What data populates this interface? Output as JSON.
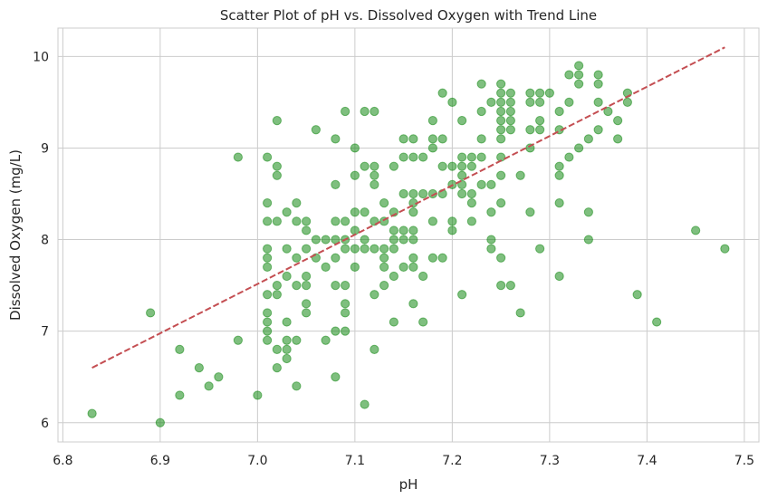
{
  "chart_data": {
    "type": "scatter",
    "title": "Scatter Plot of pH vs. Dissolved Oxygen with Trend Line",
    "xlabel": "pH",
    "ylabel": "Dissolved Oxygen (mg/L)",
    "xlim": [
      6.795,
      7.515
    ],
    "ylim": [
      5.79,
      10.31
    ],
    "xticks": [
      6.8,
      6.9,
      7.0,
      7.1,
      7.2,
      7.3,
      7.4,
      7.5
    ],
    "xtick_labels": [
      "6.8",
      "6.9",
      "7.0",
      "7.1",
      "7.2",
      "7.3",
      "7.4",
      "7.5"
    ],
    "yticks": [
      6,
      7,
      8,
      9,
      10
    ],
    "ytick_labels": [
      "6",
      "7",
      "8",
      "9",
      "10"
    ],
    "grid": true,
    "point_color": "#008000",
    "trend_color": "#c44e52",
    "trend_line": {
      "x": [
        6.83,
        7.48
      ],
      "y": [
        6.6,
        10.1
      ]
    },
    "points": [
      [
        6.83,
        6.1
      ],
      [
        6.89,
        7.2
      ],
      [
        6.9,
        6.0
      ],
      [
        6.92,
        6.8
      ],
      [
        6.92,
        6.3
      ],
      [
        6.94,
        6.6
      ],
      [
        6.95,
        6.4
      ],
      [
        6.96,
        6.5
      ],
      [
        6.98,
        8.9
      ],
      [
        6.98,
        6.9
      ],
      [
        7.0,
        6.3
      ],
      [
        7.01,
        8.9
      ],
      [
        7.01,
        8.4
      ],
      [
        7.01,
        8.2
      ],
      [
        7.01,
        7.9
      ],
      [
        7.01,
        7.8
      ],
      [
        7.01,
        7.7
      ],
      [
        7.01,
        7.4
      ],
      [
        7.01,
        7.2
      ],
      [
        7.01,
        7.1
      ],
      [
        7.01,
        7.0
      ],
      [
        7.01,
        6.9
      ],
      [
        7.02,
        9.3
      ],
      [
        7.02,
        8.8
      ],
      [
        7.02,
        8.7
      ],
      [
        7.02,
        8.2
      ],
      [
        7.02,
        7.5
      ],
      [
        7.02,
        7.4
      ],
      [
        7.02,
        6.8
      ],
      [
        7.02,
        6.6
      ],
      [
        7.03,
        8.3
      ],
      [
        7.03,
        7.9
      ],
      [
        7.03,
        7.6
      ],
      [
        7.03,
        7.1
      ],
      [
        7.03,
        6.9
      ],
      [
        7.03,
        6.8
      ],
      [
        7.03,
        6.7
      ],
      [
        7.04,
        8.4
      ],
      [
        7.04,
        8.2
      ],
      [
        7.04,
        7.8
      ],
      [
        7.04,
        7.5
      ],
      [
        7.04,
        6.9
      ],
      [
        7.04,
        6.4
      ],
      [
        7.05,
        8.2
      ],
      [
        7.05,
        8.1
      ],
      [
        7.05,
        7.9
      ],
      [
        7.05,
        7.6
      ],
      [
        7.05,
        7.5
      ],
      [
        7.05,
        7.3
      ],
      [
        7.05,
        7.2
      ],
      [
        7.06,
        9.2
      ],
      [
        7.06,
        8.0
      ],
      [
        7.06,
        7.8
      ],
      [
        7.07,
        8.0
      ],
      [
        7.07,
        7.7
      ],
      [
        7.07,
        6.9
      ],
      [
        7.08,
        9.1
      ],
      [
        7.08,
        8.6
      ],
      [
        7.08,
        8.2
      ],
      [
        7.08,
        8.0
      ],
      [
        7.08,
        7.8
      ],
      [
        7.08,
        7.5
      ],
      [
        7.08,
        7.0
      ],
      [
        7.08,
        6.5
      ],
      [
        7.09,
        9.4
      ],
      [
        7.09,
        8.2
      ],
      [
        7.09,
        8.0
      ],
      [
        7.09,
        7.9
      ],
      [
        7.09,
        7.5
      ],
      [
        7.09,
        7.3
      ],
      [
        7.09,
        7.2
      ],
      [
        7.09,
        7.0
      ],
      [
        7.1,
        9.0
      ],
      [
        7.1,
        8.7
      ],
      [
        7.1,
        8.3
      ],
      [
        7.1,
        8.1
      ],
      [
        7.1,
        7.9
      ],
      [
        7.1,
        7.7
      ],
      [
        7.11,
        9.4
      ],
      [
        7.11,
        8.8
      ],
      [
        7.11,
        8.3
      ],
      [
        7.11,
        8.0
      ],
      [
        7.11,
        7.9
      ],
      [
        7.11,
        6.2
      ],
      [
        7.12,
        9.4
      ],
      [
        7.12,
        8.8
      ],
      [
        7.12,
        8.7
      ],
      [
        7.12,
        8.6
      ],
      [
        7.12,
        8.2
      ],
      [
        7.12,
        7.9
      ],
      [
        7.12,
        7.4
      ],
      [
        7.12,
        6.8
      ],
      [
        7.13,
        8.4
      ],
      [
        7.13,
        8.2
      ],
      [
        7.13,
        7.9
      ],
      [
        7.13,
        7.8
      ],
      [
        7.13,
        7.7
      ],
      [
        7.13,
        7.5
      ],
      [
        7.14,
        8.8
      ],
      [
        7.14,
        8.3
      ],
      [
        7.14,
        8.1
      ],
      [
        7.14,
        8.0
      ],
      [
        7.14,
        7.9
      ],
      [
        7.14,
        7.6
      ],
      [
        7.14,
        7.1
      ],
      [
        7.15,
        9.1
      ],
      [
        7.15,
        8.9
      ],
      [
        7.15,
        8.5
      ],
      [
        7.15,
        8.1
      ],
      [
        7.15,
        8.0
      ],
      [
        7.15,
        7.7
      ],
      [
        7.16,
        9.1
      ],
      [
        7.16,
        8.9
      ],
      [
        7.16,
        8.5
      ],
      [
        7.16,
        8.4
      ],
      [
        7.16,
        8.3
      ],
      [
        7.16,
        8.1
      ],
      [
        7.16,
        8.0
      ],
      [
        7.16,
        7.8
      ],
      [
        7.16,
        7.7
      ],
      [
        7.16,
        7.3
      ],
      [
        7.17,
        8.9
      ],
      [
        7.17,
        8.5
      ],
      [
        7.17,
        7.6
      ],
      [
        7.17,
        7.1
      ],
      [
        7.18,
        9.3
      ],
      [
        7.18,
        9.1
      ],
      [
        7.18,
        9.0
      ],
      [
        7.18,
        8.5
      ],
      [
        7.18,
        8.2
      ],
      [
        7.18,
        7.8
      ],
      [
        7.19,
        9.6
      ],
      [
        7.19,
        9.1
      ],
      [
        7.19,
        8.8
      ],
      [
        7.19,
        8.5
      ],
      [
        7.19,
        7.8
      ],
      [
        7.2,
        9.5
      ],
      [
        7.2,
        8.8
      ],
      [
        7.2,
        8.6
      ],
      [
        7.2,
        8.2
      ],
      [
        7.2,
        8.1
      ],
      [
        7.21,
        9.3
      ],
      [
        7.21,
        8.9
      ],
      [
        7.21,
        8.8
      ],
      [
        7.21,
        8.7
      ],
      [
        7.21,
        8.6
      ],
      [
        7.21,
        8.5
      ],
      [
        7.21,
        7.4
      ],
      [
        7.22,
        8.9
      ],
      [
        7.22,
        8.8
      ],
      [
        7.22,
        8.5
      ],
      [
        7.22,
        8.4
      ],
      [
        7.22,
        8.2
      ],
      [
        7.23,
        9.7
      ],
      [
        7.23,
        9.4
      ],
      [
        7.23,
        9.1
      ],
      [
        7.23,
        8.9
      ],
      [
        7.23,
        8.6
      ],
      [
        7.24,
        9.5
      ],
      [
        7.24,
        8.6
      ],
      [
        7.24,
        8.3
      ],
      [
        7.24,
        8.0
      ],
      [
        7.24,
        7.9
      ],
      [
        7.25,
        9.7
      ],
      [
        7.25,
        9.6
      ],
      [
        7.25,
        9.5
      ],
      [
        7.25,
        9.4
      ],
      [
        7.25,
        9.3
      ],
      [
        7.25,
        9.2
      ],
      [
        7.25,
        9.1
      ],
      [
        7.25,
        8.9
      ],
      [
        7.25,
        8.7
      ],
      [
        7.25,
        8.4
      ],
      [
        7.25,
        7.8
      ],
      [
        7.25,
        7.5
      ],
      [
        7.26,
        9.6
      ],
      [
        7.26,
        9.5
      ],
      [
        7.26,
        9.4
      ],
      [
        7.26,
        9.3
      ],
      [
        7.26,
        9.2
      ],
      [
        7.26,
        7.5
      ],
      [
        7.27,
        8.7
      ],
      [
        7.27,
        7.2
      ],
      [
        7.28,
        9.6
      ],
      [
        7.28,
        9.5
      ],
      [
        7.28,
        9.2
      ],
      [
        7.28,
        9.0
      ],
      [
        7.28,
        8.3
      ],
      [
        7.29,
        9.6
      ],
      [
        7.29,
        9.5
      ],
      [
        7.29,
        9.3
      ],
      [
        7.29,
        9.2
      ],
      [
        7.29,
        7.9
      ],
      [
        7.3,
        9.6
      ],
      [
        7.31,
        9.4
      ],
      [
        7.31,
        9.2
      ],
      [
        7.31,
        8.8
      ],
      [
        7.31,
        8.7
      ],
      [
        7.31,
        8.4
      ],
      [
        7.31,
        7.6
      ],
      [
        7.32,
        9.8
      ],
      [
        7.32,
        9.5
      ],
      [
        7.32,
        8.9
      ],
      [
        7.33,
        9.9
      ],
      [
        7.33,
        9.8
      ],
      [
        7.33,
        9.7
      ],
      [
        7.33,
        9.0
      ],
      [
        7.34,
        9.1
      ],
      [
        7.34,
        8.3
      ],
      [
        7.34,
        8.0
      ],
      [
        7.35,
        9.8
      ],
      [
        7.35,
        9.7
      ],
      [
        7.35,
        9.5
      ],
      [
        7.35,
        9.2
      ],
      [
        7.36,
        9.4
      ],
      [
        7.37,
        9.3
      ],
      [
        7.37,
        9.1
      ],
      [
        7.38,
        9.6
      ],
      [
        7.38,
        9.5
      ],
      [
        7.39,
        7.4
      ],
      [
        7.41,
        7.1
      ],
      [
        7.45,
        8.1
      ],
      [
        7.48,
        7.9
      ]
    ]
  }
}
